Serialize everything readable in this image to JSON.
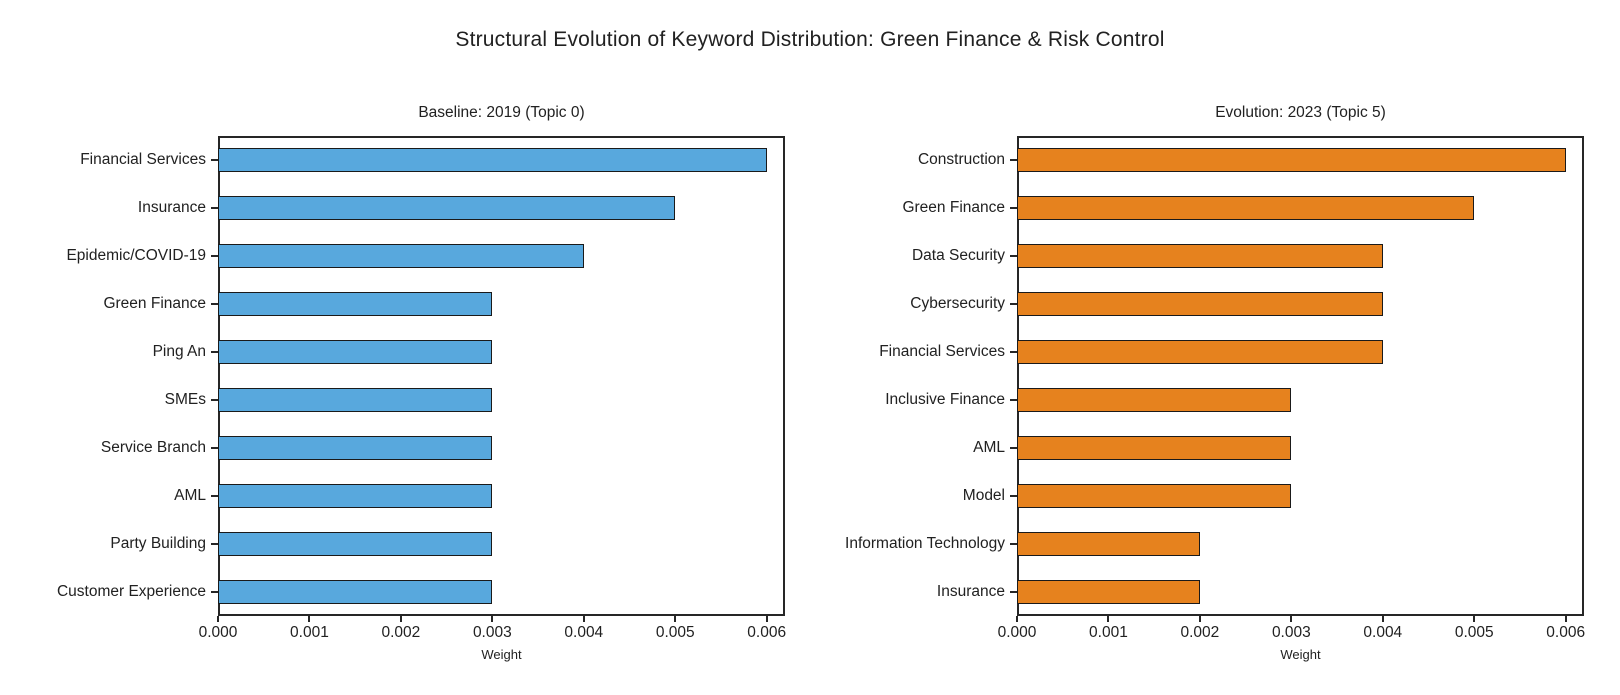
{
  "page": {
    "title": "Structural Evolution of Keyword Distribution: Green Finance & Risk Control",
    "background": "#ffffff"
  },
  "chart_data": [
    {
      "type": "bar",
      "orientation": "horizontal",
      "title": "Baseline: 2019 (Topic 0)",
      "categories": [
        "Financial Services",
        "Insurance",
        "Epidemic/COVID-19",
        "Green Finance",
        "Ping An",
        "SMEs",
        "Service Branch",
        "AML",
        "Party Building",
        "Customer Experience"
      ],
      "values": [
        0.006,
        0.005,
        0.004,
        0.003,
        0.003,
        0.003,
        0.003,
        0.003,
        0.003,
        0.003
      ],
      "xlabel": "Weight",
      "xlim": [
        0,
        0.0062
      ],
      "xticks": [
        0,
        0.001,
        0.002,
        0.003,
        0.004,
        0.005,
        0.006
      ],
      "xtick_labels": [
        "0.000",
        "0.001",
        "0.002",
        "0.003",
        "0.004",
        "0.005",
        "0.006"
      ],
      "grid": false,
      "bar_color": "#58A8DD",
      "bar_edge_color": "#1a1a1a"
    },
    {
      "type": "bar",
      "orientation": "horizontal",
      "title": "Evolution: 2023 (Topic 5)",
      "categories": [
        "Construction",
        "Green Finance",
        "Data Security",
        "Cybersecurity",
        "Financial Services",
        "Inclusive Finance",
        "AML",
        "Model",
        "Information Technology",
        "Insurance"
      ],
      "values": [
        0.006,
        0.005,
        0.004,
        0.004,
        0.004,
        0.003,
        0.003,
        0.003,
        0.002,
        0.002
      ],
      "xlabel": "Weight",
      "xlim": [
        0,
        0.0062
      ],
      "xticks": [
        0,
        0.001,
        0.002,
        0.003,
        0.004,
        0.005,
        0.006
      ],
      "xtick_labels": [
        "0.000",
        "0.001",
        "0.002",
        "0.003",
        "0.004",
        "0.005",
        "0.006"
      ],
      "grid": false,
      "bar_color": "#E6821E",
      "bar_edge_color": "#1a1a1a"
    }
  ]
}
